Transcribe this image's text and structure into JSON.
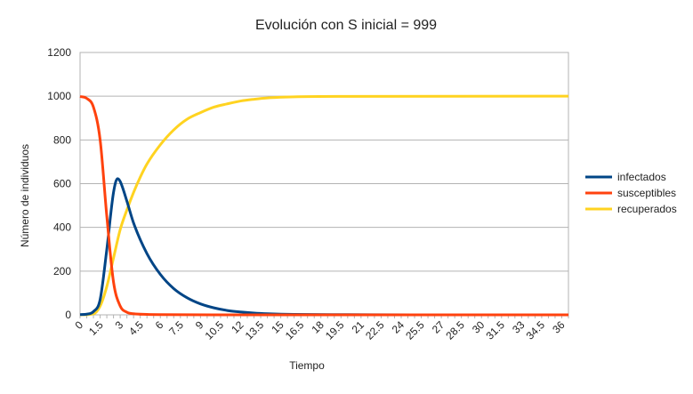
{
  "chart_data": {
    "type": "line",
    "title": "Evolución con S inicial = 999",
    "xlabel": "Tiempo",
    "ylabel": "Número de individuos",
    "xlim": [
      0,
      36.5
    ],
    "ylim": [
      0,
      1200
    ],
    "yticks": [
      0,
      200,
      400,
      600,
      800,
      1000,
      1200
    ],
    "xtick_labels": [
      "0",
      "1.5",
      "3",
      "4.5",
      "6",
      "7.5",
      "9",
      "10.5",
      "12",
      "13.5",
      "15",
      "16.5",
      "18",
      "19.5",
      "21",
      "22.5",
      "24",
      "25.5",
      "27",
      "28.5",
      "30",
      "31.5",
      "33",
      "34.5",
      "36"
    ],
    "grid": "horizontal",
    "legend": "right",
    "series": [
      {
        "name": "infectados",
        "color": "#004586",
        "x": [
          0,
          0.5,
          1,
          1.5,
          2,
          2.5,
          2.8,
          3,
          3.5,
          4,
          5,
          6,
          7,
          8,
          9,
          10,
          11,
          12,
          13,
          14,
          16,
          20,
          25,
          30,
          36.5
        ],
        "y": [
          1,
          3,
          15,
          70,
          300,
          560,
          623,
          610,
          520,
          420,
          280,
          185,
          120,
          78,
          50,
          32,
          20,
          13,
          8,
          5,
          2,
          1,
          0,
          0,
          0
        ]
      },
      {
        "name": "susceptibles",
        "color": "#ff420e",
        "x": [
          0,
          0.5,
          1,
          1.5,
          2,
          2.5,
          3,
          3.5,
          4,
          5,
          6,
          10,
          20,
          36.5
        ],
        "y": [
          999,
          990,
          950,
          800,
          450,
          150,
          40,
          12,
          5,
          2,
          1,
          0,
          0,
          0
        ]
      },
      {
        "name": "recuperados",
        "color": "#ffd320",
        "x": [
          0,
          1,
          1.5,
          2,
          2.5,
          3,
          3.5,
          4,
          4.5,
          5,
          6,
          7,
          8,
          9,
          10,
          11,
          12,
          13,
          14,
          16,
          20,
          36.5
        ],
        "y": [
          0,
          5,
          40,
          130,
          260,
          390,
          480,
          560,
          630,
          690,
          778,
          846,
          895,
          925,
          950,
          965,
          978,
          986,
          992,
          997,
          999,
          1000
        ]
      }
    ]
  }
}
